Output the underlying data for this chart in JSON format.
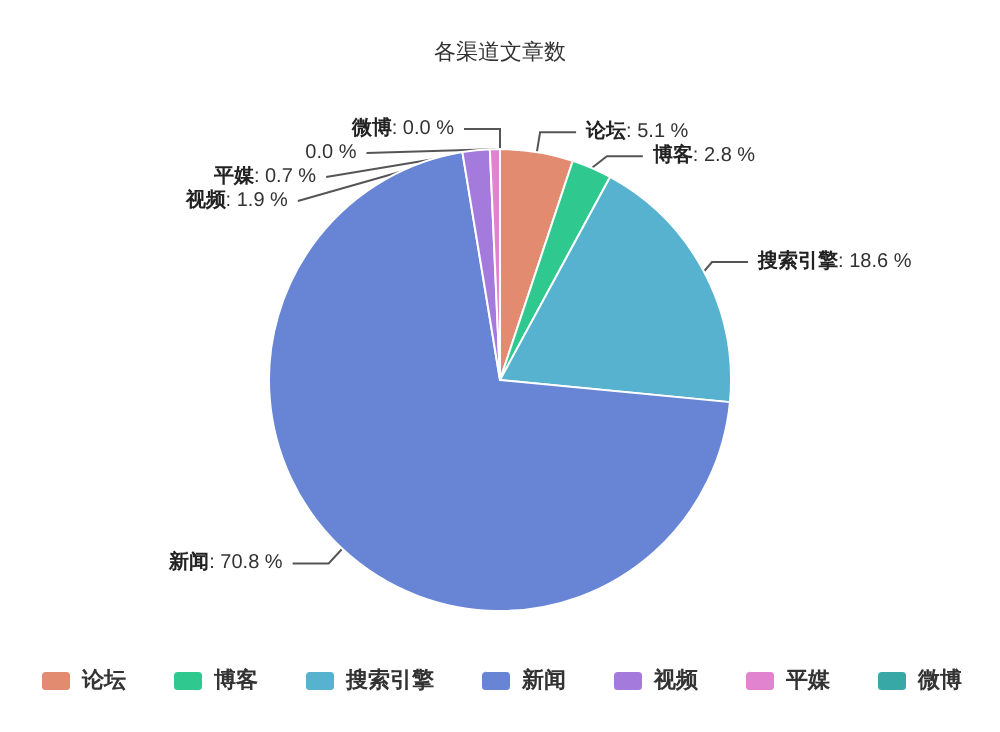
{
  "chart_data": {
    "type": "pie",
    "title": "各渠道文章数",
    "categories": [
      "论坛",
      "博客",
      "搜索引擎",
      "新闻",
      "视频",
      "平媒",
      "微博",
      null
    ],
    "values": [
      5.1,
      2.8,
      18.6,
      70.8,
      1.9,
      0.7,
      0.0,
      0.0
    ],
    "value_labels": [
      ": 5.1 %",
      ": 2.8 %",
      ": 18.6 %",
      ": 70.8 %",
      ": 1.9 %",
      ": 0.7 %",
      ": 0.0 %",
      "0.0 %"
    ],
    "colors": [
      "#e38b70",
      "#2fc98f",
      "#56b2cf",
      "#6784d5",
      "#a57add",
      "#e283cf",
      "#38a8a6",
      "#6a62d9"
    ],
    "legend": "bottom"
  }
}
